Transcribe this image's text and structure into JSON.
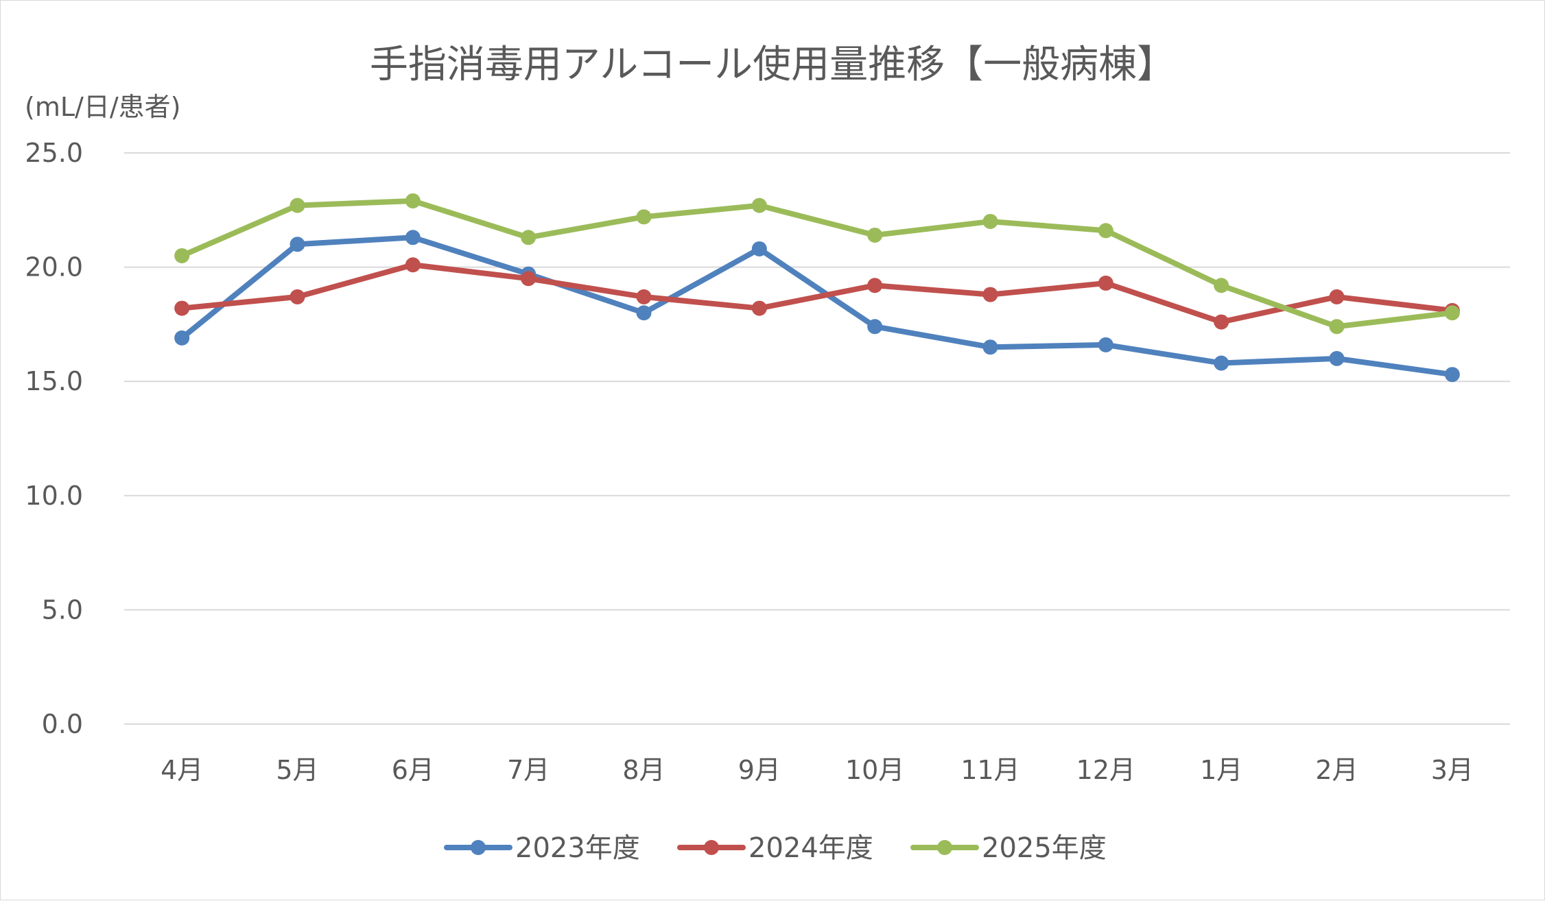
{
  "chart_data": {
    "type": "line",
    "title": "手指消毒用アルコール使用量推移【一般病棟】",
    "ylabel": "(mL/日/患者)",
    "xlabel": "",
    "categories": [
      "4月",
      "5月",
      "6月",
      "7月",
      "8月",
      "9月",
      "10月",
      "11月",
      "12月",
      "1月",
      "2月",
      "3月"
    ],
    "ylim": [
      0,
      25
    ],
    "yticks": [
      0,
      5,
      10,
      15,
      20,
      25
    ],
    "ytick_labels": [
      "0.0",
      "5.0",
      "10.0",
      "15.0",
      "20.0",
      "25.0"
    ],
    "grid": true,
    "legend_position": "bottom",
    "series": [
      {
        "name": "2023年度",
        "color": "#4f81bd",
        "values": [
          16.9,
          21.0,
          21.3,
          19.7,
          18.0,
          20.8,
          17.4,
          16.5,
          16.6,
          15.8,
          16.0,
          15.3
        ]
      },
      {
        "name": "2024年度",
        "color": "#c0504d",
        "values": [
          18.2,
          18.7,
          20.1,
          19.5,
          18.7,
          18.2,
          19.2,
          18.8,
          19.3,
          17.6,
          18.7,
          18.1
        ]
      },
      {
        "name": "2025年度",
        "color": "#9bbb59",
        "values": [
          20.5,
          22.7,
          22.9,
          21.3,
          22.2,
          22.7,
          21.4,
          22.0,
          21.6,
          19.2,
          17.4,
          18.0
        ]
      }
    ]
  }
}
